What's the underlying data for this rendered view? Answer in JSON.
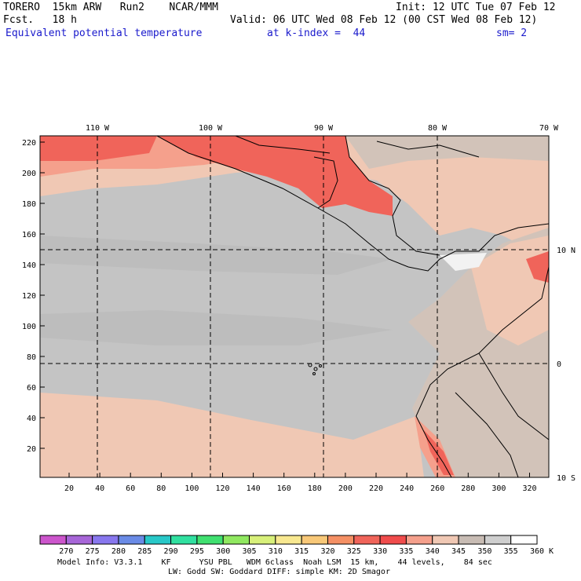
{
  "header": {
    "line1_left": "TORERO  15km ARW   Run2    NCAR/MMM",
    "line1_right": "Init: 12 UTC Tue 07 Feb 12",
    "line2_left": "Fcst.   18 h",
    "line2_right": "Valid: 06 UTC Wed 08 Feb 12 (00 CST Wed 08 Feb 12)",
    "line3_field": "Equivalent potential temperature",
    "line3_level": "at k-index =  44",
    "line3_sm": "sm= 2"
  },
  "map": {
    "top_lon_labels": [
      "110 W",
      "100 W",
      "90 W",
      "80 W",
      "70 W"
    ],
    "right_lat_labels": [
      "10 N",
      "0",
      "10 S"
    ],
    "left_y_ticks": [
      "220",
      "200",
      "180",
      "160",
      "140",
      "120",
      "100",
      "80",
      "60",
      "40",
      "20"
    ],
    "bottom_x_ticks": [
      "20",
      "40",
      "60",
      "80",
      "100",
      "120",
      "140",
      "160",
      "180",
      "200",
      "220",
      "240",
      "260",
      "280",
      "300",
      "320"
    ],
    "colors": {
      "ocean_cool": "#c8c8c8",
      "ocean_mid": "#bebebe",
      "warm_340": "#f0c8b4",
      "warm_335": "#f5a08c",
      "hot_330": "#f0645a",
      "land_mid": "#d2c3b9",
      "grid": "#000000"
    }
  },
  "colorbar": {
    "labels": [
      "270",
      "275",
      "280",
      "285",
      "290",
      "295",
      "300",
      "305",
      "310",
      "315",
      "320",
      "325",
      "330",
      "335",
      "340",
      "345",
      "350",
      "355",
      "360"
    ],
    "unit": "K",
    "colors": [
      "#cc55cc",
      "#a766d8",
      "#8877ee",
      "#6a8be6",
      "#28c8c8",
      "#30e0a0",
      "#40e070",
      "#90e860",
      "#d8f07a",
      "#f8e890",
      "#f8c878",
      "#f59064",
      "#f0645a",
      "#f04c4c",
      "#f5a08c",
      "#f0c8b4",
      "#c8bcb4",
      "#cfcfcf",
      "#ffffff"
    ]
  },
  "footer": {
    "line1": "Model Info: V3.3.1    KF      YSU PBL   WDM 6class  Noah LSM  15 km,    44 levels,    84 sec",
    "line2": "LW: Godd SW: Goddard DIFF: simple KM: 2D Smagor"
  }
}
